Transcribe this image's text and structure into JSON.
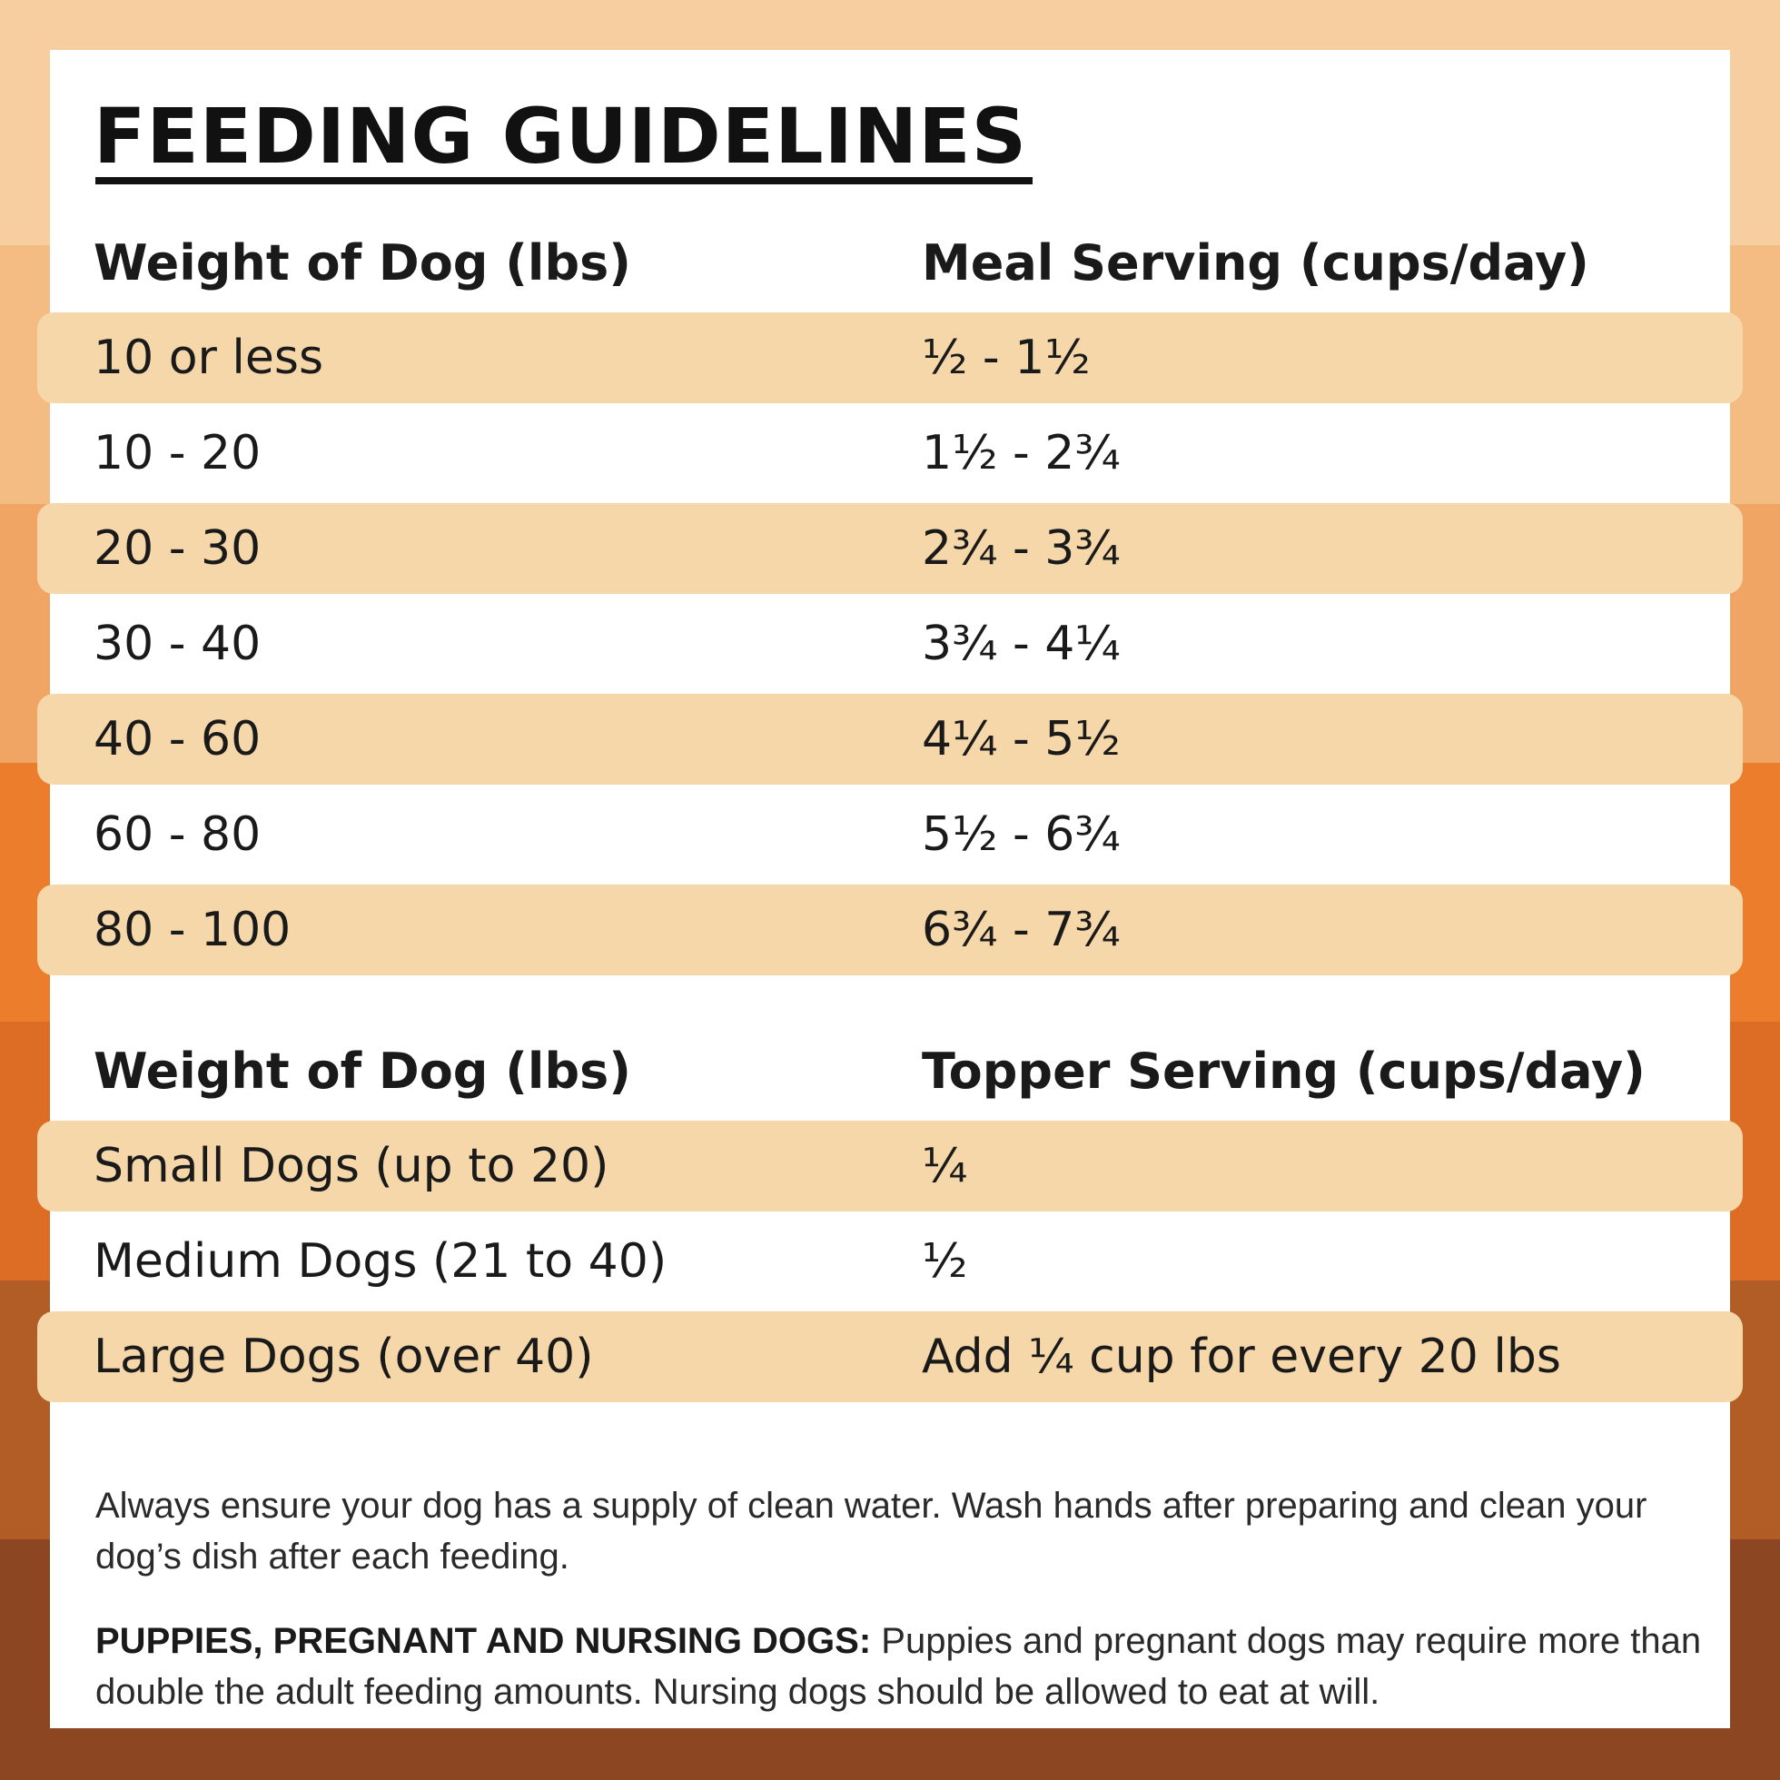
{
  "colors": {
    "card": "#ffffff",
    "row_highlight": "#f5d7a9",
    "text": "#1a1a1a",
    "background_bands": [
      "#f6ce9f",
      "#f4bb82",
      "#f0a565",
      "#ec7d2c",
      "#dd6d24",
      "#b25c26",
      "#8c4621"
    ]
  },
  "title": "FEEDING GUIDELINES",
  "meal_table": {
    "headers": [
      "Weight of Dog (lbs)",
      "Meal Serving (cups/day)"
    ],
    "rows": [
      {
        "weight": "10 or less",
        "serving": "½ - 1½"
      },
      {
        "weight": "10 - 20",
        "serving": "1½ - 2¾"
      },
      {
        "weight": "20 - 30",
        "serving": "2¾ - 3¾"
      },
      {
        "weight": "30 - 40",
        "serving": "3¾ - 4¼"
      },
      {
        "weight": "40 - 60",
        "serving": "4¼ - 5½"
      },
      {
        "weight": "60 - 80",
        "serving": "5½ - 6¾"
      },
      {
        "weight": "80 - 100",
        "serving": "6¾ - 7¾"
      }
    ]
  },
  "topper_table": {
    "headers": [
      "Weight of Dog (lbs)",
      "Topper Serving (cups/day)"
    ],
    "rows": [
      {
        "weight": "Small Dogs (up to 20)",
        "serving": "¼"
      },
      {
        "weight": "Medium Dogs (21 to 40)",
        "serving": "½"
      },
      {
        "weight": "Large Dogs (over 40)",
        "serving": "Add ¼ cup for every 20 lbs"
      }
    ]
  },
  "notes": {
    "water": "Always ensure your dog has a supply of clean water. Wash hands after preparing and clean your dog’s dish after each feeding.",
    "puppies_label": "PUPPIES, PREGNANT AND NURSING DOGS:",
    "puppies_text": " Puppies and pregnant dogs may require more than double the adult feeding amounts. Nursing dogs should be allowed to eat at will."
  }
}
